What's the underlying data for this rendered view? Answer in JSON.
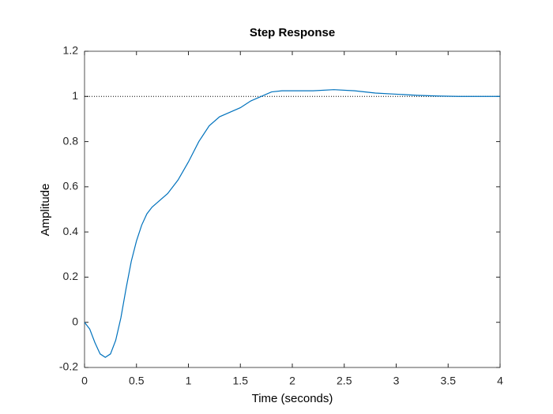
{
  "chart_data": {
    "type": "line",
    "title": "Step Response",
    "x_label": "Time (seconds)",
    "y_label": "Amplitude",
    "x": [
      0,
      0.05,
      0.1,
      0.15,
      0.2,
      0.25,
      0.3,
      0.35,
      0.4,
      0.45,
      0.5,
      0.55,
      0.6,
      0.65,
      0.7,
      0.8,
      0.9,
      1.0,
      1.1,
      1.2,
      1.3,
      1.4,
      1.5,
      1.6,
      1.7,
      1.8,
      1.9,
      2.0,
      2.2,
      2.4,
      2.6,
      2.8,
      3.0,
      3.2,
      3.4,
      3.6,
      3.8,
      4.0
    ],
    "series": [
      {
        "name": "Step Response",
        "color": "#0072bd",
        "values": [
          0,
          -0.03,
          -0.09,
          -0.14,
          -0.155,
          -0.14,
          -0.08,
          0.02,
          0.15,
          0.27,
          0.36,
          0.43,
          0.48,
          0.51,
          0.53,
          0.57,
          0.63,
          0.71,
          0.8,
          0.87,
          0.91,
          0.93,
          0.95,
          0.98,
          1.0,
          1.02,
          1.025,
          1.025,
          1.025,
          1.03,
          1.025,
          1.015,
          1.01,
          1.005,
          1.002,
          1.0,
          1.0,
          1.0
        ]
      }
    ],
    "steady_state": 1,
    "xlim": [
      0,
      4
    ],
    "xticks": [
      0,
      0.5,
      1,
      1.5,
      2,
      2.5,
      3,
      3.5,
      4
    ],
    "ylim": [
      -0.2,
      1.2
    ],
    "yticks": [
      -0.2,
      0,
      0.2,
      0.4,
      0.6,
      0.8,
      1,
      1.2
    ],
    "grid": false
  }
}
